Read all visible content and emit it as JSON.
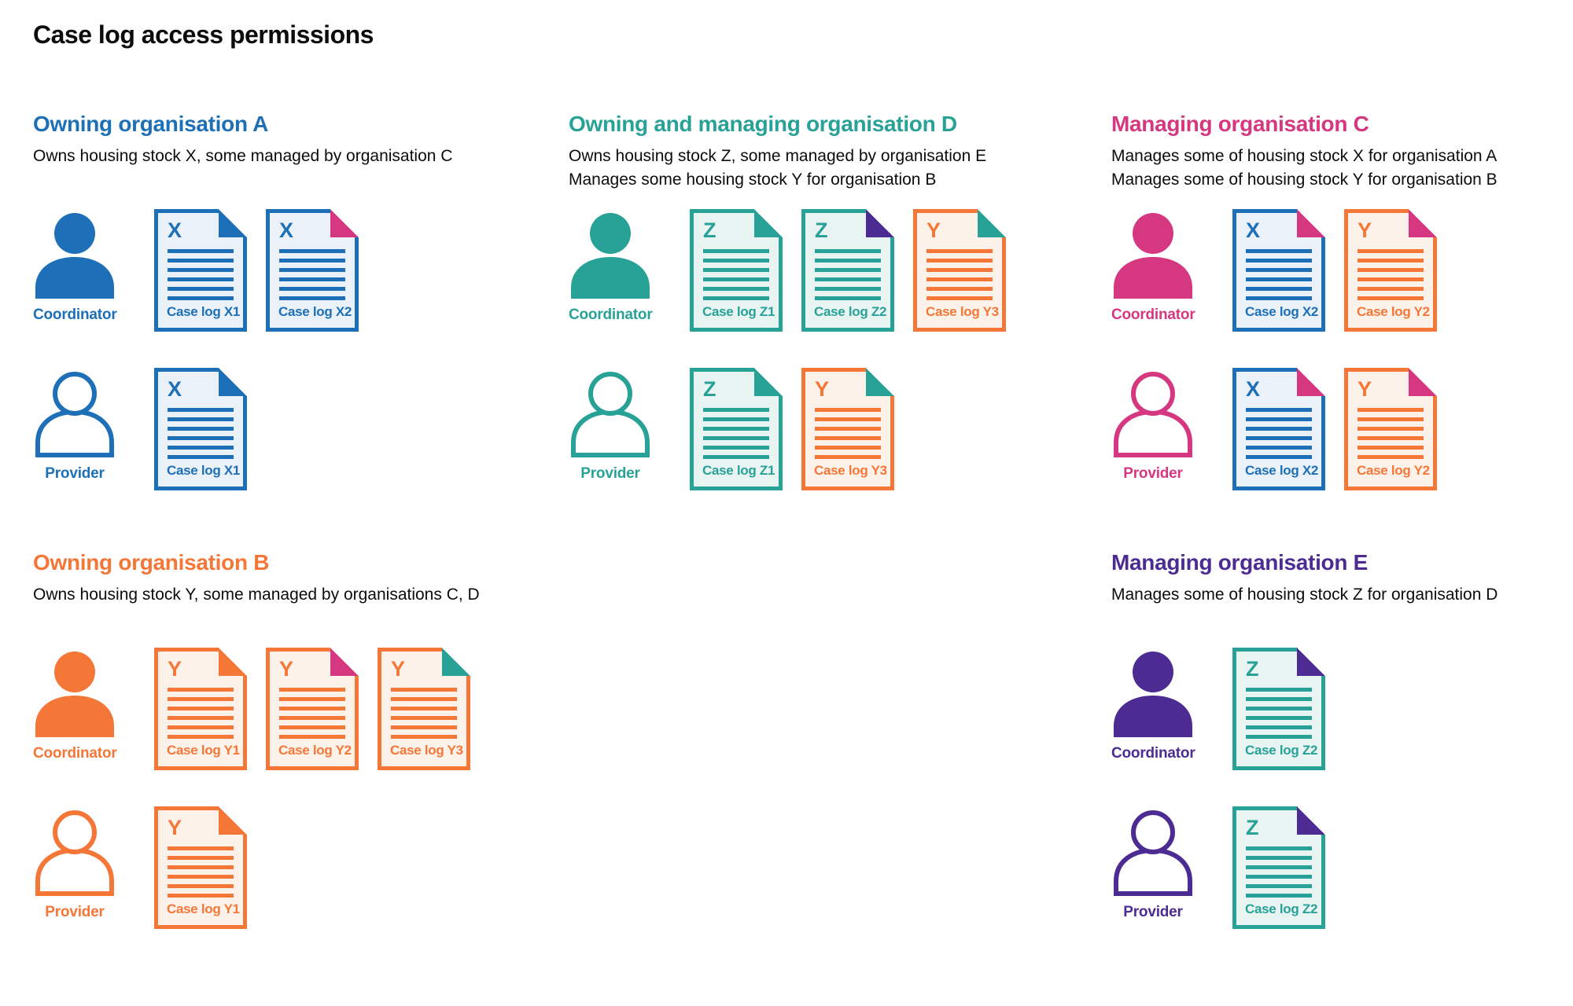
{
  "page": {
    "title": "Case log access permissions"
  },
  "palette": {
    "blue": "#1d70b8",
    "teal": "#28a197",
    "pink": "#d53880",
    "orange": "#f47738",
    "purple": "#4c2c92",
    "text": "#0b0c0c",
    "tint_blue": "#eaf1f8",
    "tint_teal": "#e8f4f2",
    "tint_orange": "#fdf2ea",
    "page_background": "#ffffff"
  },
  "sections": [
    {
      "id": "org-a",
      "accent": "blue",
      "heading": "Owning organisation A",
      "description": [
        "Owns housing stock X, some managed by organisation C"
      ],
      "rows": [
        {
          "role": "Coordinator",
          "person_style": "filled",
          "docs": [
            {
              "letter": "X",
              "label": "Case log X1",
              "doc_color": "blue",
              "fold_color": "blue"
            },
            {
              "letter": "X",
              "label": "Case log X2",
              "doc_color": "blue",
              "fold_color": "pink"
            }
          ]
        },
        {
          "role": "Provider",
          "person_style": "outline",
          "docs": [
            {
              "letter": "X",
              "label": "Case log X1",
              "doc_color": "blue",
              "fold_color": "blue"
            }
          ]
        }
      ]
    },
    {
      "id": "org-d",
      "accent": "teal",
      "heading": "Owning and managing organisation D",
      "description": [
        "Owns housing stock Z, some managed by organisation E",
        "Manages some housing stock Y for organisation B"
      ],
      "rows": [
        {
          "role": "Coordinator",
          "person_style": "filled",
          "docs": [
            {
              "letter": "Z",
              "label": "Case log Z1",
              "doc_color": "teal",
              "fold_color": "teal"
            },
            {
              "letter": "Z",
              "label": "Case log Z2",
              "doc_color": "teal",
              "fold_color": "purple"
            },
            {
              "letter": "Y",
              "label": "Case log Y3",
              "doc_color": "orange",
              "fold_color": "teal"
            }
          ]
        },
        {
          "role": "Provider",
          "person_style": "outline",
          "docs": [
            {
              "letter": "Z",
              "label": "Case log Z1",
              "doc_color": "teal",
              "fold_color": "teal"
            },
            {
              "letter": "Y",
              "label": "Case log Y3",
              "doc_color": "orange",
              "fold_color": "teal"
            }
          ]
        }
      ]
    },
    {
      "id": "org-c",
      "accent": "pink",
      "heading": "Managing organisation C",
      "description": [
        "Manages some of housing stock X for organisation A",
        "Manages some of housing stock Y for organisation B"
      ],
      "rows": [
        {
          "role": "Coordinator",
          "person_style": "filled",
          "docs": [
            {
              "letter": "X",
              "label": "Case log X2",
              "doc_color": "blue",
              "fold_color": "pink"
            },
            {
              "letter": "Y",
              "label": "Case log Y2",
              "doc_color": "orange",
              "fold_color": "pink"
            }
          ]
        },
        {
          "role": "Provider",
          "person_style": "outline",
          "docs": [
            {
              "letter": "X",
              "label": "Case log X2",
              "doc_color": "blue",
              "fold_color": "pink"
            },
            {
              "letter": "Y",
              "label": "Case log Y2",
              "doc_color": "orange",
              "fold_color": "pink"
            }
          ]
        }
      ]
    },
    {
      "id": "org-b",
      "accent": "orange",
      "heading": "Owning organisation B",
      "description": [
        "Owns housing stock Y, some managed by organisations C, D"
      ],
      "rows": [
        {
          "role": "Coordinator",
          "person_style": "filled",
          "docs": [
            {
              "letter": "Y",
              "label": "Case log Y1",
              "doc_color": "orange",
              "fold_color": "orange"
            },
            {
              "letter": "Y",
              "label": "Case log Y2",
              "doc_color": "orange",
              "fold_color": "pink"
            },
            {
              "letter": "Y",
              "label": "Case log Y3",
              "doc_color": "orange",
              "fold_color": "teal"
            }
          ]
        },
        {
          "role": "Provider",
          "person_style": "outline",
          "docs": [
            {
              "letter": "Y",
              "label": "Case log Y1",
              "doc_color": "orange",
              "fold_color": "orange"
            }
          ]
        }
      ]
    },
    {
      "id": "org-e",
      "accent": "purple",
      "heading": "Managing organisation E",
      "description": [
        "Manages some of housing stock Z for organisation D"
      ],
      "rows": [
        {
          "role": "Coordinator",
          "person_style": "filled",
          "docs": [
            {
              "letter": "Z",
              "label": "Case log Z2",
              "doc_color": "teal",
              "fold_color": "purple"
            }
          ]
        },
        {
          "role": "Provider",
          "person_style": "outline",
          "docs": [
            {
              "letter": "Z",
              "label": "Case log Z2",
              "doc_color": "teal",
              "fold_color": "purple"
            }
          ]
        }
      ]
    }
  ]
}
